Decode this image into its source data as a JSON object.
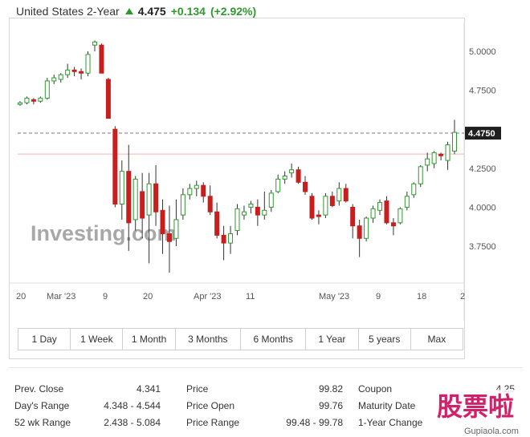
{
  "header": {
    "title": "United States 2-Year",
    "price": "4.475",
    "change": "+0.134",
    "change_pct": "(+2.92%)"
  },
  "chart_data": {
    "type": "candlestick",
    "ylim": [
      3.5,
      5.15
    ],
    "y_ticks": [
      "5.0000",
      "4.7500",
      "4.2500",
      "4.0000",
      "3.7500"
    ],
    "current_price_label": "4.4750",
    "current_price_value": 4.475,
    "prev_close_line": 4.341,
    "x_labels": [
      "20",
      "Mar '23",
      "9",
      "20",
      "Apr '23",
      "11",
      "May '23",
      "9",
      "18",
      "2"
    ],
    "watermark": "Investing.com",
    "colors": {
      "up": "#2e9a2e",
      "down": "#c81e1e",
      "up_fill": "#ffffff"
    },
    "ohlc": [
      {
        "o": 4.66,
        "h": 4.68,
        "l": 4.65,
        "c": 4.67
      },
      {
        "o": 4.67,
        "h": 4.71,
        "l": 4.66,
        "c": 4.7
      },
      {
        "o": 4.69,
        "h": 4.7,
        "l": 4.66,
        "c": 4.68
      },
      {
        "o": 4.68,
        "h": 4.71,
        "l": 4.67,
        "c": 4.7
      },
      {
        "o": 4.7,
        "h": 4.83,
        "l": 4.69,
        "c": 4.81
      },
      {
        "o": 4.81,
        "h": 4.85,
        "l": 4.79,
        "c": 4.83
      },
      {
        "o": 4.82,
        "h": 4.86,
        "l": 4.8,
        "c": 4.85
      },
      {
        "o": 4.85,
        "h": 4.92,
        "l": 4.83,
        "c": 4.88
      },
      {
        "o": 4.88,
        "h": 4.9,
        "l": 4.84,
        "c": 4.87
      },
      {
        "o": 4.87,
        "h": 4.89,
        "l": 4.82,
        "c": 4.86
      },
      {
        "o": 4.86,
        "h": 5.0,
        "l": 4.84,
        "c": 4.98
      },
      {
        "o": 5.04,
        "h": 5.07,
        "l": 5.0,
        "c": 5.06
      },
      {
        "o": 5.04,
        "h": 5.05,
        "l": 4.86,
        "c": 4.86
      },
      {
        "o": 4.82,
        "h": 4.83,
        "l": 4.57,
        "c": 4.57
      },
      {
        "o": 4.5,
        "h": 4.52,
        "l": 4.0,
        "c": 4.02
      },
      {
        "o": 4.02,
        "h": 4.3,
        "l": 3.92,
        "c": 4.23
      },
      {
        "o": 4.23,
        "h": 4.4,
        "l": 3.72,
        "c": 3.9
      },
      {
        "o": 3.92,
        "h": 4.2,
        "l": 3.85,
        "c": 4.18
      },
      {
        "o": 4.1,
        "h": 4.22,
        "l": 3.8,
        "c": 3.93
      },
      {
        "o": 3.95,
        "h": 4.22,
        "l": 3.64,
        "c": 4.15
      },
      {
        "o": 4.15,
        "h": 4.27,
        "l": 3.88,
        "c": 3.97
      },
      {
        "o": 3.98,
        "h": 4.05,
        "l": 3.7,
        "c": 3.83
      },
      {
        "o": 3.83,
        "h": 4.01,
        "l": 3.58,
        "c": 3.78
      },
      {
        "o": 3.8,
        "h": 4.05,
        "l": 3.75,
        "c": 3.92
      },
      {
        "o": 3.95,
        "h": 4.12,
        "l": 3.92,
        "c": 4.08
      },
      {
        "o": 4.08,
        "h": 4.15,
        "l": 4.05,
        "c": 4.12
      },
      {
        "o": 4.12,
        "h": 4.17,
        "l": 4.07,
        "c": 4.14
      },
      {
        "o": 4.14,
        "h": 4.16,
        "l": 4.03,
        "c": 4.07
      },
      {
        "o": 4.07,
        "h": 4.14,
        "l": 3.95,
        "c": 3.97
      },
      {
        "o": 3.97,
        "h": 4.03,
        "l": 3.8,
        "c": 3.82
      },
      {
        "o": 3.82,
        "h": 3.88,
        "l": 3.66,
        "c": 3.77
      },
      {
        "o": 3.77,
        "h": 3.88,
        "l": 3.7,
        "c": 3.83
      },
      {
        "o": 3.85,
        "h": 4.02,
        "l": 3.82,
        "c": 3.99
      },
      {
        "o": 3.95,
        "h": 4.01,
        "l": 3.92,
        "c": 3.97
      },
      {
        "o": 4.0,
        "h": 4.04,
        "l": 3.96,
        "c": 4.02
      },
      {
        "o": 4.0,
        "h": 4.05,
        "l": 3.88,
        "c": 3.95
      },
      {
        "o": 3.95,
        "h": 4.1,
        "l": 3.92,
        "c": 3.98
      },
      {
        "o": 4.0,
        "h": 4.11,
        "l": 3.97,
        "c": 4.09
      },
      {
        "o": 4.1,
        "h": 4.21,
        "l": 4.09,
        "c": 4.18
      },
      {
        "o": 4.18,
        "h": 4.23,
        "l": 4.15,
        "c": 4.2
      },
      {
        "o": 4.22,
        "h": 4.28,
        "l": 4.19,
        "c": 4.24
      },
      {
        "o": 4.24,
        "h": 4.26,
        "l": 4.15,
        "c": 4.16
      },
      {
        "o": 4.16,
        "h": 4.2,
        "l": 4.08,
        "c": 4.1
      },
      {
        "o": 4.07,
        "h": 4.09,
        "l": 3.92,
        "c": 3.93
      },
      {
        "o": 3.95,
        "h": 3.98,
        "l": 3.89,
        "c": 3.94
      },
      {
        "o": 3.95,
        "h": 4.09,
        "l": 3.93,
        "c": 4.07
      },
      {
        "o": 4.07,
        "h": 4.1,
        "l": 4.0,
        "c": 4.01
      },
      {
        "o": 4.04,
        "h": 4.16,
        "l": 4.01,
        "c": 4.12
      },
      {
        "o": 4.12,
        "h": 4.15,
        "l": 4.03,
        "c": 4.04
      },
      {
        "o": 4.0,
        "h": 4.02,
        "l": 3.8,
        "c": 3.88
      },
      {
        "o": 3.88,
        "h": 3.92,
        "l": 3.68,
        "c": 3.8
      },
      {
        "o": 3.8,
        "h": 3.94,
        "l": 3.78,
        "c": 3.93
      },
      {
        "o": 3.93,
        "h": 4.01,
        "l": 3.9,
        "c": 3.99
      },
      {
        "o": 3.98,
        "h": 4.05,
        "l": 3.95,
        "c": 4.03
      },
      {
        "o": 4.04,
        "h": 4.07,
        "l": 3.89,
        "c": 3.9
      },
      {
        "o": 3.9,
        "h": 3.93,
        "l": 3.82,
        "c": 3.88
      },
      {
        "o": 3.9,
        "h": 4.0,
        "l": 3.89,
        "c": 3.99
      },
      {
        "o": 4.0,
        "h": 4.1,
        "l": 3.98,
        "c": 4.07
      },
      {
        "o": 4.08,
        "h": 4.16,
        "l": 4.06,
        "c": 4.15
      },
      {
        "o": 4.15,
        "h": 4.27,
        "l": 4.13,
        "c": 4.26
      },
      {
        "o": 4.27,
        "h": 4.35,
        "l": 4.23,
        "c": 4.31
      },
      {
        "o": 4.28,
        "h": 4.36,
        "l": 4.25,
        "c": 4.35
      },
      {
        "o": 4.34,
        "h": 4.35,
        "l": 4.3,
        "c": 4.33
      },
      {
        "o": 4.3,
        "h": 4.42,
        "l": 4.24,
        "c": 4.4
      },
      {
        "o": 4.36,
        "h": 4.56,
        "l": 4.34,
        "c": 4.48
      }
    ]
  },
  "tabs": [
    "1 Day",
    "1 Week",
    "1 Month",
    "3 Months",
    "6 Months",
    "1 Year",
    "5 years",
    "Max"
  ],
  "stats": {
    "col1": [
      {
        "label": "Prev. Close",
        "value": "4.341"
      },
      {
        "label": "Day's Range",
        "value": "4.348 - 4.544"
      },
      {
        "label": "52 wk Range",
        "value": "2.438 - 5.084"
      }
    ],
    "col2": [
      {
        "label": "Price",
        "value": "99.82"
      },
      {
        "label": "Price Open",
        "value": "99.76"
      },
      {
        "label": "Price Range",
        "value": "99.48 - 99.78"
      }
    ],
    "col3": [
      {
        "label": "Coupon",
        "value": "4.25"
      },
      {
        "label": "Maturity Date",
        "value": ""
      },
      {
        "label": "1-Year Change",
        "value": ""
      }
    ]
  },
  "watermark_logo": {
    "text": "股票啦",
    "site": "Gupiaola.com"
  }
}
